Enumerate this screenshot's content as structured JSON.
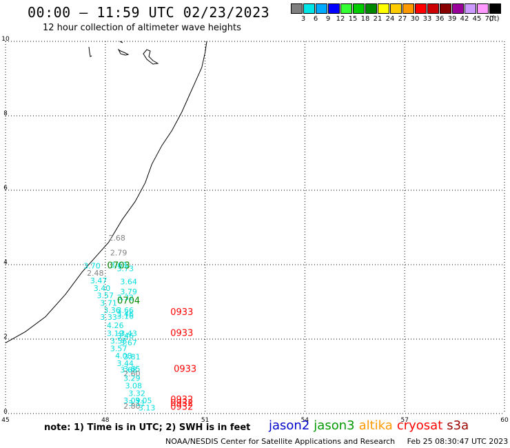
{
  "header": {
    "title": "00:00 – 11:59 UTC 02/23/2023",
    "subtitle": "12 hour collection of altimeter wave heights"
  },
  "legend": {
    "unit": "(ft)",
    "bins": [
      {
        "label": "3",
        "color": "#7f7f7f"
      },
      {
        "label": "6",
        "color": "#00e5e5"
      },
      {
        "label": "9",
        "color": "#00aaff"
      },
      {
        "label": "12",
        "color": "#0000ff"
      },
      {
        "label": "15",
        "color": "#33ff33"
      },
      {
        "label": "18",
        "color": "#00cc00"
      },
      {
        "label": "21",
        "color": "#008800"
      },
      {
        "label": "24",
        "color": "#ffff00"
      },
      {
        "label": "27",
        "color": "#ffcc00"
      },
      {
        "label": "30",
        "color": "#ff9900"
      },
      {
        "label": "33",
        "color": "#ff0000"
      },
      {
        "label": "36",
        "color": "#cc0000"
      },
      {
        "label": "39",
        "color": "#880000"
      },
      {
        "label": "42",
        "color": "#990099"
      },
      {
        "label": "45",
        "color": "#cc99ff"
      },
      {
        "label": "70",
        "color": "#ff99ff"
      },
      {
        "label": "",
        "color": "#000000"
      }
    ]
  },
  "map": {
    "x_ticks": [
      "45",
      "48",
      "51",
      "54",
      "57",
      "60"
    ],
    "y_ticks": [
      "0",
      "2",
      "4",
      "6",
      "8",
      "10"
    ],
    "lon_range": [
      45,
      60
    ],
    "lat_range": [
      0,
      10
    ],
    "grid": true
  },
  "chart_data": {
    "type": "scatter",
    "lon_range": [
      45,
      60
    ],
    "lat_range": [
      0,
      10
    ],
    "points": [
      {
        "lon": 48.35,
        "lat": 4.65,
        "value": "2.68",
        "color": "#7f7f7f"
      },
      {
        "lon": 48.4,
        "lat": 4.25,
        "value": "2.79",
        "color": "#7f7f7f"
      },
      {
        "lon": 47.6,
        "lat": 3.9,
        "value": "3.70",
        "color": "#00dddd"
      },
      {
        "lon": 48.4,
        "lat": 3.92,
        "value": "3.63",
        "color": "#00dddd"
      },
      {
        "lon": 48.6,
        "lat": 3.82,
        "value": "3.73",
        "color": "#00dddd"
      },
      {
        "lon": 47.7,
        "lat": 3.7,
        "value": "2.48",
        "color": "#7f7f7f"
      },
      {
        "lon": 47.8,
        "lat": 3.5,
        "value": "3.47",
        "color": "#00dddd"
      },
      {
        "lon": 48.7,
        "lat": 3.47,
        "value": "3.64",
        "color": "#00dddd"
      },
      {
        "lon": 47.9,
        "lat": 3.3,
        "value": "3.40",
        "color": "#00dddd"
      },
      {
        "lon": 48.7,
        "lat": 3.2,
        "value": "3.79",
        "color": "#00dddd"
      },
      {
        "lon": 48.0,
        "lat": 3.1,
        "value": "3.57",
        "color": "#00dddd"
      },
      {
        "lon": 48.6,
        "lat": 3.05,
        "value": "3.32",
        "color": "#00dddd"
      },
      {
        "lon": 48.1,
        "lat": 2.9,
        "value": "3.71",
        "color": "#00dddd"
      },
      {
        "lon": 48.2,
        "lat": 2.7,
        "value": "3.36",
        "color": "#00dddd"
      },
      {
        "lon": 48.6,
        "lat": 2.7,
        "value": "3.66",
        "color": "#00dddd"
      },
      {
        "lon": 48.6,
        "lat": 2.6,
        "value": "3.46",
        "color": "#00dddd"
      },
      {
        "lon": 48.1,
        "lat": 2.52,
        "value": "3.33",
        "color": "#00dddd"
      },
      {
        "lon": 48.6,
        "lat": 2.55,
        "value": "3.16",
        "color": "#00dddd"
      },
      {
        "lon": 48.3,
        "lat": 2.3,
        "value": "4.26",
        "color": "#00dddd"
      },
      {
        "lon": 48.3,
        "lat": 2.08,
        "value": "3.19",
        "color": "#00dddd"
      },
      {
        "lon": 48.7,
        "lat": 2.08,
        "value": "3.43",
        "color": "#00dddd"
      },
      {
        "lon": 48.6,
        "lat": 2.02,
        "value": "3.46",
        "color": "#00dddd"
      },
      {
        "lon": 48.4,
        "lat": 1.88,
        "value": "3.58",
        "color": "#00dddd"
      },
      {
        "lon": 48.7,
        "lat": 1.83,
        "value": "3.67",
        "color": "#00dddd"
      },
      {
        "lon": 48.4,
        "lat": 1.68,
        "value": "3.57",
        "color": "#00dddd"
      },
      {
        "lon": 48.55,
        "lat": 1.48,
        "value": "4.08",
        "color": "#00dddd"
      },
      {
        "lon": 48.8,
        "lat": 1.45,
        "value": "3.81",
        "color": "#00dddd"
      },
      {
        "lon": 48.6,
        "lat": 1.28,
        "value": "3.44",
        "color": "#00dddd"
      },
      {
        "lon": 48.8,
        "lat": 1.13,
        "value": "3.65",
        "color": "#00dddd"
      },
      {
        "lon": 48.7,
        "lat": 1.1,
        "value": "3.68",
        "color": "#00dddd"
      },
      {
        "lon": 48.8,
        "lat": 1.0,
        "value": "2.60",
        "color": "#7f7f7f"
      },
      {
        "lon": 48.8,
        "lat": 0.88,
        "value": "3.29",
        "color": "#00dddd"
      },
      {
        "lon": 48.85,
        "lat": 0.68,
        "value": "3.08",
        "color": "#00dddd"
      },
      {
        "lon": 48.95,
        "lat": 0.47,
        "value": "3.32",
        "color": "#00dddd"
      },
      {
        "lon": 48.8,
        "lat": 0.28,
        "value": "3.09",
        "color": "#00dddd"
      },
      {
        "lon": 49.15,
        "lat": 0.28,
        "value": "3.05",
        "color": "#00dddd"
      },
      {
        "lon": 48.95,
        "lat": 0.2,
        "value": "3.11",
        "color": "#00dddd"
      },
      {
        "lon": 48.8,
        "lat": 0.13,
        "value": "2.80",
        "color": "#7f7f7f"
      },
      {
        "lon": 49.25,
        "lat": 0.08,
        "value": "3.13",
        "color": "#00dddd"
      }
    ],
    "pass_labels": [
      {
        "lon": 48.4,
        "lat": 3.9,
        "text": "0703",
        "color": "#008800"
      },
      {
        "lon": 48.7,
        "lat": 2.95,
        "text": "0704",
        "color": "#008800"
      },
      {
        "lon": 50.3,
        "lat": 2.65,
        "text": "0933",
        "color": "#ff0000"
      },
      {
        "lon": 50.3,
        "lat": 2.08,
        "text": "0933",
        "color": "#ff0000"
      },
      {
        "lon": 50.4,
        "lat": 1.12,
        "text": "0933",
        "color": "#ff0000"
      },
      {
        "lon": 50.3,
        "lat": 0.3,
        "text": "0932",
        "color": "#ff0000"
      },
      {
        "lon": 50.3,
        "lat": 0.2,
        "text": "0932",
        "color": "#ff0000"
      },
      {
        "lon": 50.3,
        "lat": 0.1,
        "text": "0932",
        "color": "#ff0000"
      }
    ]
  },
  "footer": {
    "note": "note: 1) Time is in UTC; 2) SWH is in feet",
    "satellites": [
      {
        "name": "jason2",
        "color": "#0000cc"
      },
      {
        "name": "jason3",
        "color": "#009900"
      },
      {
        "name": "altika",
        "color": "#ff9900"
      },
      {
        "name": "cryosat",
        "color": "#ff0000"
      },
      {
        "name": "s3a",
        "color": "#990000"
      }
    ],
    "credit": "NOAA/NESDIS Center for Satellite Applications and Research",
    "timestamp": "Feb 25 08:30:47 UTC 2023"
  }
}
